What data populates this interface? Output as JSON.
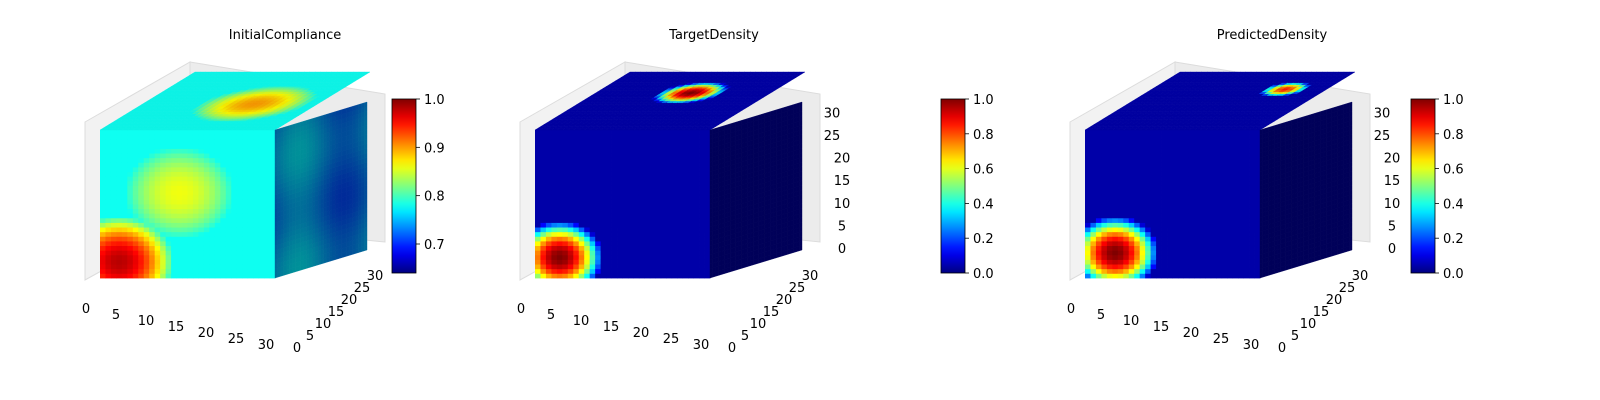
{
  "chart_data": [
    {
      "type": "voxel",
      "title": "InitialCompliance",
      "xlabel": "",
      "ylabel": "",
      "zlabel": "",
      "x_ticks": [
        "0",
        "5",
        "10",
        "15",
        "20",
        "25",
        "30"
      ],
      "y_ticks": [
        "0",
        "5",
        "10",
        "15",
        "20",
        "25",
        "30"
      ],
      "z_ticks": [],
      "grid_size": [
        32,
        32,
        32
      ],
      "colormap": "jet",
      "colorbar": {
        "min": 0.64,
        "max": 1.0,
        "ticks": [
          "0.7",
          "0.8",
          "0.9",
          "1.0"
        ],
        "tick_values": [
          0.7,
          0.8,
          0.9,
          1.0
        ]
      },
      "front_hotspots": [
        {
          "x": 3,
          "z": 3,
          "r": 10,
          "value": 0.98
        },
        {
          "x": 14,
          "z": 18,
          "r": 10,
          "value": 0.86
        }
      ],
      "top_hotspots": [
        {
          "x": 20,
          "y": 14,
          "r": 10,
          "value": 0.9
        }
      ],
      "side_value": 0.74,
      "base_value": 0.78
    },
    {
      "type": "voxel",
      "title": "TargetDensity",
      "xlabel": "",
      "ylabel": "",
      "zlabel": "",
      "x_ticks": [
        "0",
        "5",
        "10",
        "15",
        "20",
        "25",
        "30"
      ],
      "y_ticks": [
        "0",
        "5",
        "10",
        "15",
        "20",
        "25",
        "30"
      ],
      "z_ticks": [
        "0",
        "5",
        "10",
        "15",
        "20",
        "25",
        "30"
      ],
      "grid_size": [
        32,
        32,
        32
      ],
      "colormap": "jet",
      "colorbar": {
        "min": 0.0,
        "max": 1.0,
        "ticks": [
          "0.0",
          "0.2",
          "0.4",
          "0.6",
          "0.8",
          "1.0"
        ],
        "tick_values": [
          0.0,
          0.2,
          0.4,
          0.6,
          0.8,
          1.0
        ]
      },
      "front_hotspots": [
        {
          "x": 4,
          "z": 4,
          "r": 8,
          "value": 1.0
        }
      ],
      "top_hotspots": [
        {
          "x": 17,
          "y": 20,
          "r": 6,
          "value": 1.0
        }
      ],
      "side_value": 0.02,
      "base_value": 0.04
    },
    {
      "type": "voxel",
      "title": "PredictedDensity",
      "xlabel": "",
      "ylabel": "",
      "zlabel": "",
      "x_ticks": [
        "0",
        "5",
        "10",
        "15",
        "20",
        "25",
        "30"
      ],
      "y_ticks": [
        "0",
        "5",
        "10",
        "15",
        "20",
        "25",
        "30"
      ],
      "z_ticks": [
        "0",
        "5",
        "10",
        "15",
        "20",
        "25",
        "30"
      ],
      "grid_size": [
        32,
        32,
        32
      ],
      "colormap": "jet",
      "colorbar": {
        "min": 0.0,
        "max": 1.0,
        "ticks": [
          "0.0",
          "0.2",
          "0.4",
          "0.6",
          "0.8",
          "1.0"
        ],
        "tick_values": [
          0.0,
          0.2,
          0.4,
          0.6,
          0.8,
          1.0
        ]
      },
      "front_hotspots": [
        {
          "x": 5,
          "z": 5,
          "r": 8,
          "value": 1.0
        }
      ],
      "top_hotspots": [
        {
          "x": 24,
          "y": 22,
          "r": 4,
          "value": 0.85
        }
      ],
      "side_value": 0.02,
      "base_value": 0.04
    }
  ]
}
